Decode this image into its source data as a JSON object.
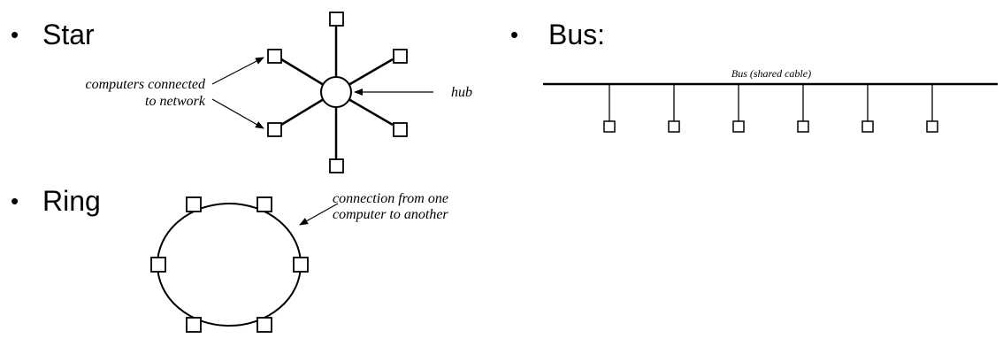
{
  "bullet_glyph": "•",
  "star": {
    "title": "Star",
    "annotation_computers_line1": "computers connected",
    "annotation_computers_line2": "to network",
    "annotation_hub": "hub"
  },
  "bus": {
    "title": "Bus:",
    "cable_label": "Bus (shared cable)"
  },
  "ring": {
    "title": "Ring",
    "annotation_line1": "connection from one",
    "annotation_line2": "computer to another"
  },
  "colors": {
    "stroke": "#000000",
    "text": "#000000",
    "background": "#ffffff"
  }
}
